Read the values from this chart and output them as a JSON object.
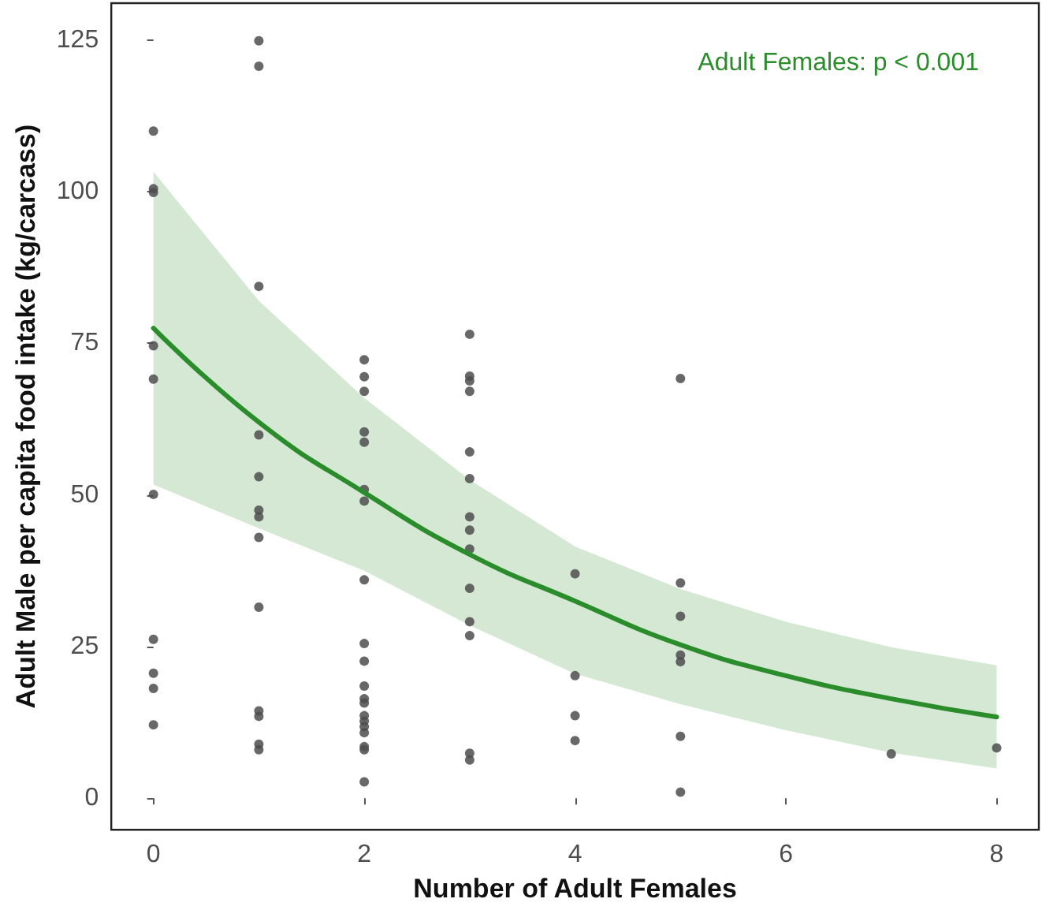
{
  "chart_data": {
    "type": "scatter",
    "xlabel": "Number of Adult Females",
    "ylabel": "Adult Male per capita food intake (kg/carcass)",
    "xlim": [
      -0.4,
      8.4
    ],
    "ylim": [
      -5.2,
      131.1
    ],
    "xticks": [
      0,
      2,
      4,
      6,
      8
    ],
    "yticks": [
      0,
      25,
      50,
      75,
      100,
      125
    ],
    "grid": false,
    "marker": "circle",
    "annotations": [
      "Adult Females: p < 0.001"
    ],
    "series": [
      {
        "color": "#4d4d4d",
        "x": [
          0,
          0,
          0,
          0,
          0,
          0,
          0,
          0,
          0,
          0,
          1,
          1,
          1,
          1,
          1,
          1,
          1,
          1,
          1,
          1,
          1,
          1,
          1,
          2,
          2,
          2,
          2,
          2,
          2,
          2,
          2,
          2,
          2,
          2,
          2,
          2,
          2,
          2,
          2,
          2,
          2,
          2,
          2,
          3,
          3,
          3,
          3,
          3,
          3,
          3,
          3,
          3,
          3,
          3,
          3,
          3,
          3,
          4,
          4,
          4,
          4,
          5,
          5,
          5,
          5,
          5,
          5,
          5,
          7,
          8
        ],
        "values": [
          110,
          100.5,
          99.9,
          74.6,
          69.1,
          50.1,
          26.2,
          20.6,
          18.1,
          12.1,
          124.9,
          120.7,
          84.4,
          59.9,
          53,
          47.5,
          46.4,
          43,
          31.5,
          14.4,
          13.5,
          8.9,
          8,
          72.3,
          69.5,
          67.1,
          60.4,
          58.7,
          50.9,
          49,
          36,
          25.5,
          22.6,
          18.5,
          16.4,
          15.7,
          13.6,
          12.7,
          11.8,
          10.8,
          8.5,
          8,
          2.7,
          76.5,
          69.6,
          68.8,
          67.1,
          57.1,
          52.7,
          46.4,
          44.2,
          41.1,
          34.6,
          29.1,
          26.8,
          7.4,
          6.3,
          37,
          20.2,
          13.6,
          9.5,
          69.2,
          35.5,
          30,
          23.6,
          22.5,
          10.2,
          1,
          7.3,
          8.3
        ]
      },
      {
        "type": "line",
        "color": "#2a8c2a",
        "line_style": "solid",
        "marker": "none",
        "x": [
          0,
          1,
          2,
          3,
          4,
          5,
          6,
          7,
          8
        ],
        "values": [
          77.5,
          62,
          50.4,
          40.2,
          32.5,
          25.3,
          20.2,
          16.4,
          13.4
        ],
        "lower": [
          51.7,
          44.5,
          37.5,
          28.5,
          20.5,
          15.5,
          11.2,
          7.5,
          4.9
        ],
        "upper": [
          103.3,
          82,
          66,
          52.5,
          41.5,
          34.5,
          29.1,
          24.9,
          21.9
        ]
      }
    ]
  }
}
